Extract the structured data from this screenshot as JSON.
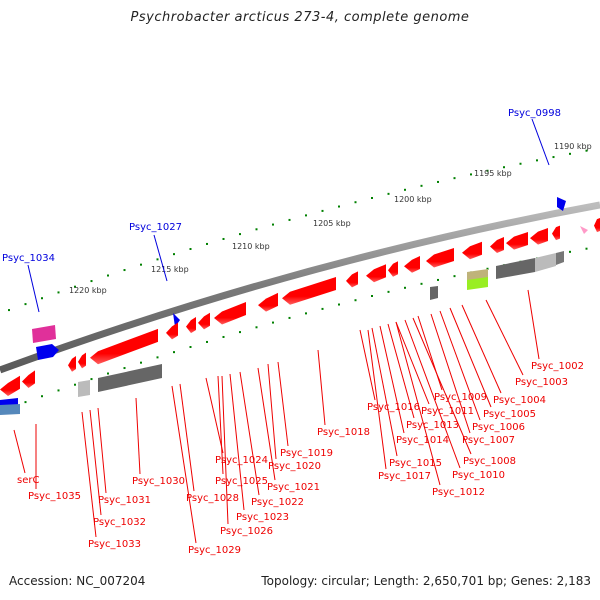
{
  "title": "Psychrobacter arcticus 273-4, complete genome",
  "footer": {
    "accession": "Accession: NC_007204",
    "summary": "Topology: circular; Length: 2,650,701 bp; Genes: 2,183"
  },
  "colors": {
    "backbone": "#808080",
    "tick": "#008000",
    "forward_label": "#0000dd",
    "reverse_label": "#ee0000",
    "cds": "#ff0000",
    "rna": "#0000ff"
  },
  "scale_ticks": [
    "1190 kbp",
    "1195 kbp",
    "1200 kbp",
    "1205 kbp",
    "1210 kbp",
    "1215 kbp",
    "1220 kbp"
  ],
  "forward_labels": [
    "Psyc_0998",
    "Psyc_1027",
    "Psyc_1034"
  ],
  "reverse_labels": [
    "Psyc_1002",
    "Psyc_1003",
    "Psyc_1004",
    "Psyc_1005",
    "Psyc_1006",
    "Psyc_1007",
    "Psyc_1008",
    "Psyc_1009",
    "Psyc_1010",
    "Psyc_1011",
    "Psyc_1012",
    "Psyc_1013",
    "Psyc_1014",
    "Psyc_1015",
    "Psyc_1016",
    "Psyc_1017",
    "Psyc_1018",
    "Psyc_1019",
    "Psyc_1020",
    "Psyc_1021",
    "Psyc_1022",
    "Psyc_1023",
    "Psyc_1024",
    "Psyc_1025",
    "Psyc_1026",
    "Psyc_1028",
    "Psyc_1029",
    "Psyc_1030",
    "Psyc_1031",
    "Psyc_1032",
    "Psyc_1033",
    "Psyc_1035",
    "serC"
  ]
}
